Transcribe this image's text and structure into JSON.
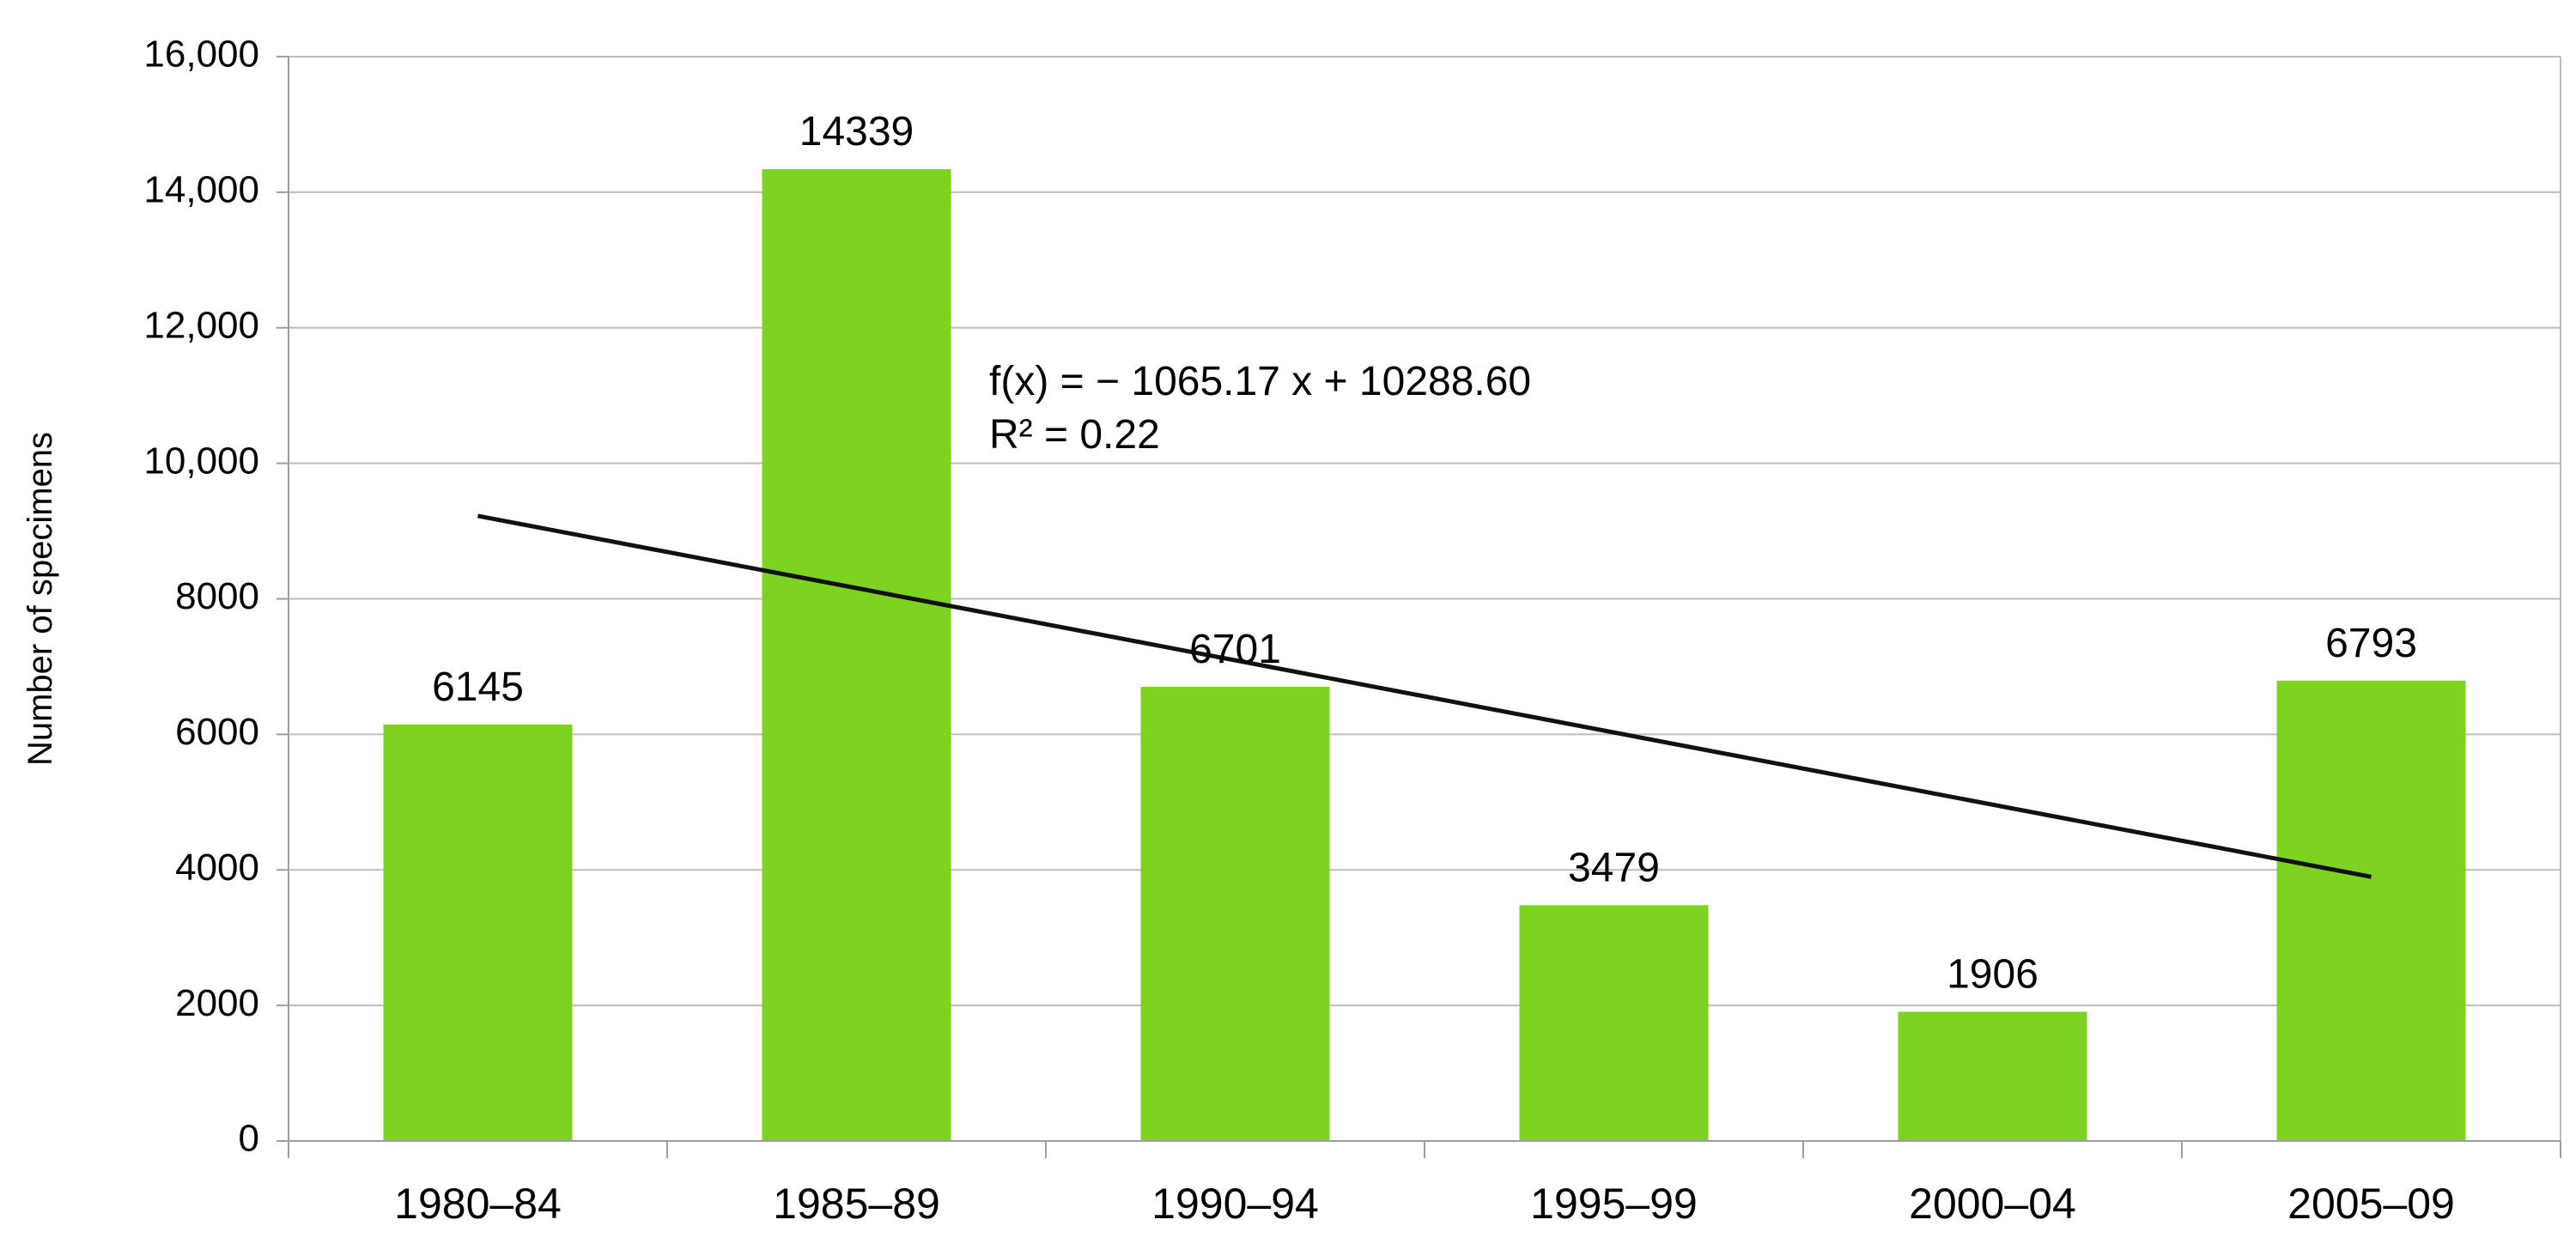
{
  "chart_data": {
    "type": "bar",
    "title": "",
    "xlabel": "",
    "ylabel": "Number of specimens",
    "categories": [
      "1980–84",
      "1985–89",
      "1990–94",
      "1995–99",
      "2000–04",
      "2005–09"
    ],
    "values": [
      6145,
      14339,
      6701,
      3479,
      1906,
      6793
    ],
    "value_labels": [
      "6145",
      "14339",
      "6701",
      "3479",
      "1906",
      "6793"
    ],
    "ylim": [
      0,
      16000
    ],
    "y_ticks": [
      0,
      2000,
      4000,
      6000,
      8000,
      10000,
      12000,
      14000,
      16000
    ],
    "y_tick_labels": [
      "0",
      "2000",
      "4000",
      "6000",
      "8000",
      "10,000",
      "12,000",
      "14,000",
      "16,000"
    ],
    "grid": true,
    "legend": "none",
    "bar_color": "#7ed321",
    "trendline": {
      "type": "linear",
      "slope": -1065.17,
      "intercept": 10288.6,
      "x_start": 1,
      "x_end": 6,
      "color": "#111111",
      "equation_label": "f(x) = − 1065.17 x + 10288.60",
      "r2_label": "R² = 0.22"
    }
  }
}
